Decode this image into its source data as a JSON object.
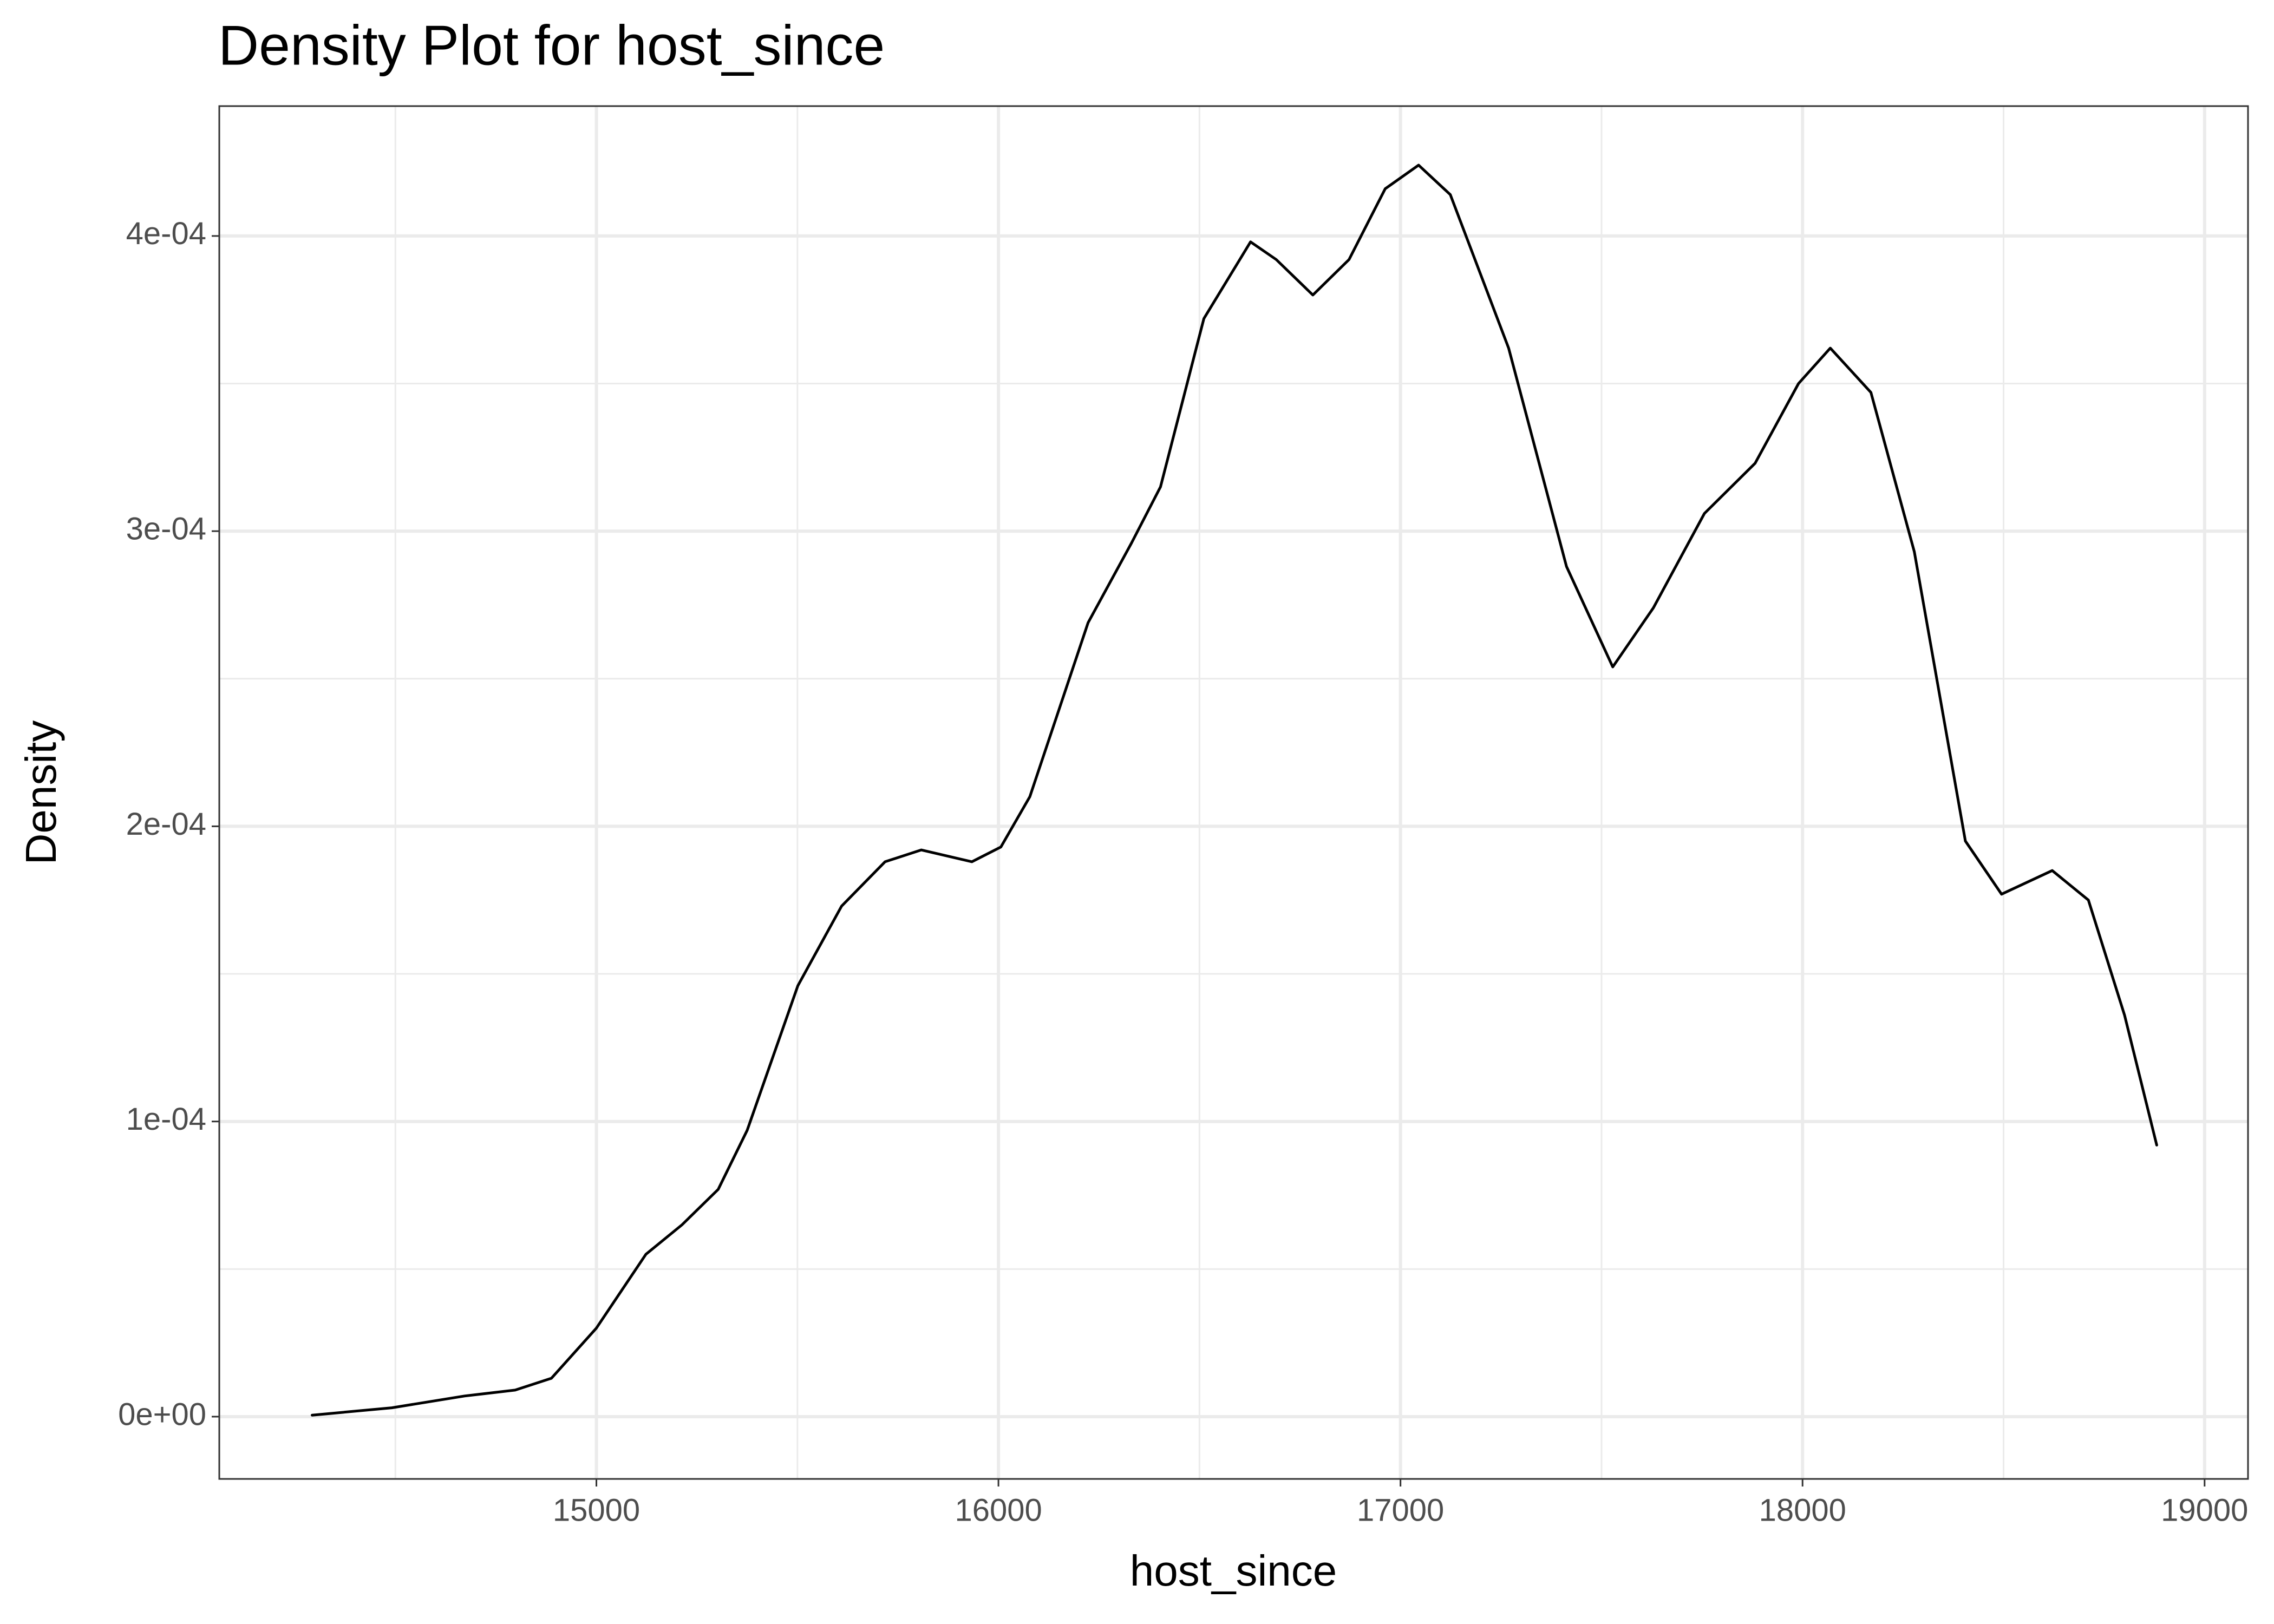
{
  "chart_data": {
    "type": "line",
    "title": "Density Plot for  host_since",
    "x_label": "host_since",
    "y_label": "Density",
    "x": [
      14293,
      14491,
      14672,
      14798,
      14888,
      15000,
      15123,
      15213,
      15303,
      15375,
      15501,
      15610,
      15718,
      15808,
      15934,
      16006,
      16078,
      16223,
      16331,
      16403,
      16511,
      16627,
      16691,
      16782,
      16872,
      16962,
      17045,
      17124,
      17269,
      17413,
      17528,
      17629,
      17756,
      17882,
      17990,
      18069,
      18170,
      18278,
      18405,
      18495,
      18621,
      18711,
      18801,
      18881
    ],
    "series": [
      {
        "name": "density",
        "color": "#000000",
        "values": [
          5e-07,
          3e-06,
          7e-06,
          9e-06,
          1.3e-05,
          3e-05,
          5.5e-05,
          6.5e-05,
          7.7e-05,
          9.7e-05,
          0.000146,
          0.000173,
          0.000188,
          0.000192,
          0.000188,
          0.000193,
          0.00021,
          0.000269,
          0.000296,
          0.000315,
          0.000372,
          0.000398,
          0.000392,
          0.00038,
          0.000392,
          0.000416,
          0.000424,
          0.000414,
          0.000362,
          0.000288,
          0.000254,
          0.000274,
          0.000306,
          0.000323,
          0.00035,
          0.000362,
          0.000347,
          0.000293,
          0.000195,
          0.000177,
          0.000185,
          0.000175,
          0.000136,
          9.2e-05
        ]
      }
    ],
    "xlim": [
      14062,
      19108
    ],
    "xticks": [
      15000,
      16000,
      17000,
      18000,
      19000
    ],
    "xminor": [
      14500,
      15500,
      16500,
      17500,
      18500
    ],
    "ylim": [
      -2.11e-05,
      0.000444
    ],
    "yticks": [
      {
        "value": 0,
        "label": "0e+00"
      },
      {
        "value": 0.0001,
        "label": "1e-04"
      },
      {
        "value": 0.0002,
        "label": "2e-04"
      },
      {
        "value": 0.0003,
        "label": "3e-04"
      },
      {
        "value": 0.0004,
        "label": "4e-04"
      }
    ],
    "yminor": [
      5e-05,
      0.00015,
      0.00025,
      0.00035
    ],
    "grid": true
  }
}
